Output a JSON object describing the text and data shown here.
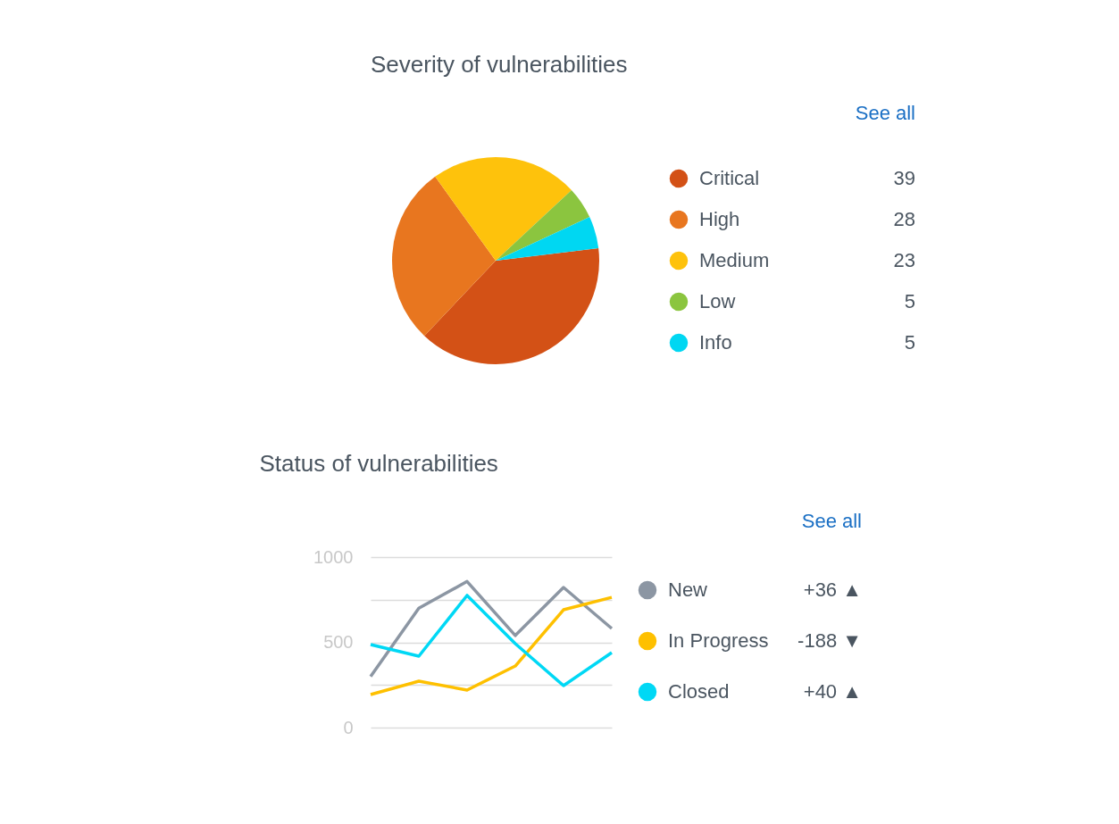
{
  "chart_data": [
    {
      "type": "pie",
      "title": "Severity of vulnerabilities",
      "annotations": [
        "See all"
      ],
      "legend": "right",
      "data_labels": true,
      "categories": [
        "Critical",
        "High",
        "Medium",
        "Low",
        "Info"
      ],
      "values": [
        39,
        28,
        23,
        5,
        5
      ],
      "colors": [
        "#d35116",
        "#e8761f",
        "#fec20c",
        "#8bc53f",
        "#00d7f2"
      ]
    },
    {
      "type": "line",
      "title": "Status of vulnerabilities",
      "annotations": [
        "See all",
        "+36 ▲",
        "-188 ▼",
        "+40 ▲"
      ],
      "legend": "right",
      "grid": "y",
      "tick_labels": "y",
      "categories": [
        null,
        null,
        null,
        null,
        null,
        null
      ],
      "ylim": [
        0,
        1000
      ],
      "yticks": [
        0,
        {
          "value": 250,
          "label": null
        },
        500,
        {
          "value": 750,
          "label": null
        },
        1000
      ],
      "series": [
        {
          "name": "New",
          "color": "#8c96a3",
          "values": [
            300,
            700,
            857,
            540,
            822,
            581
          ]
        },
        {
          "name": "In Progress",
          "color": "#fec000",
          "values": [
            194,
            272,
            220,
            361,
            691,
            764
          ]
        },
        {
          "name": "Closed",
          "color": "#00d8f5",
          "values": [
            487,
            419,
            775,
            492,
            246,
            440
          ]
        }
      ]
    }
  ]
}
